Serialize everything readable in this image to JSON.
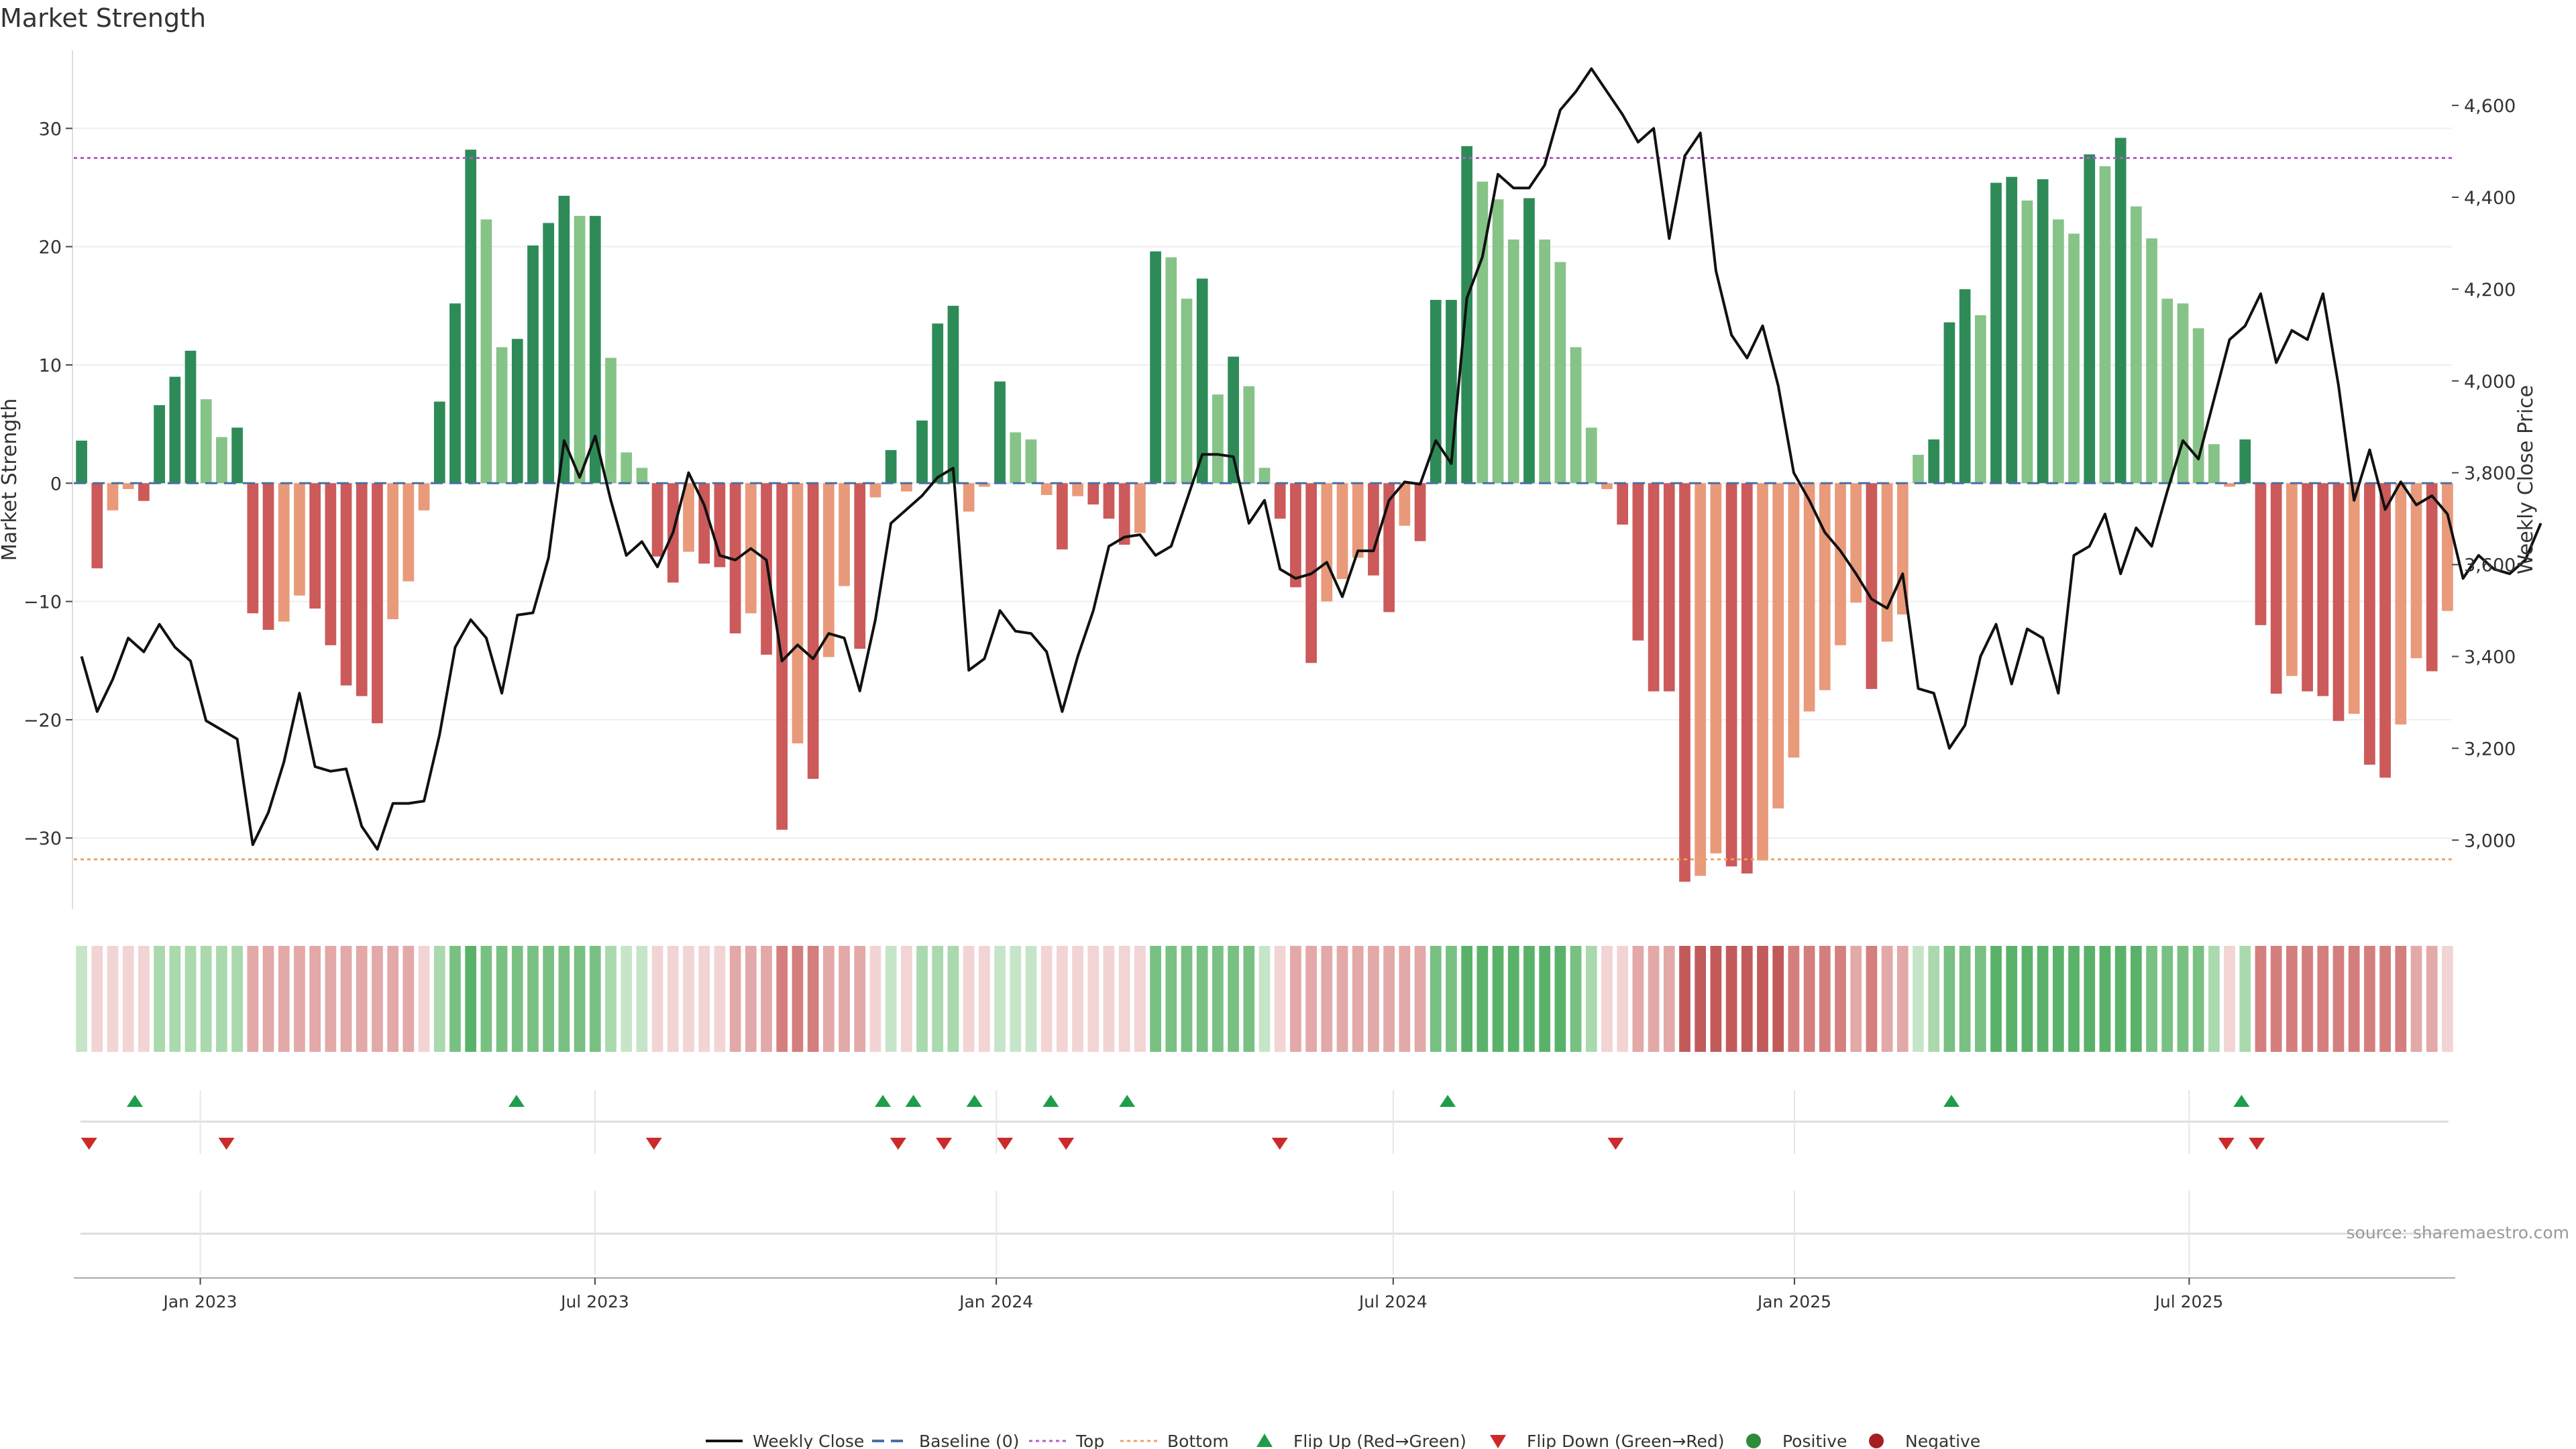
{
  "title": "Market Strength",
  "source": "source: sharemaestro.com",
  "chart_data": {
    "type": "bar",
    "title": "Market Strength",
    "ylabel": "Market Strength",
    "y2label": "Weekly Close Price",
    "ylim": [
      -36,
      36.6
    ],
    "y2lim": [
      2850,
      4720
    ],
    "yticks": [
      30,
      20,
      10,
      0,
      -10,
      -20,
      -30
    ],
    "ytick_labels": [
      "30",
      "20",
      "10",
      "0",
      "−10",
      "−20",
      "−30"
    ],
    "y2ticks": [
      4600,
      4400,
      4200,
      4000,
      3800,
      3600,
      3400,
      3200,
      3000
    ],
    "y2tick_labels": [
      "4,600",
      "4,400",
      "4,200",
      "4,000",
      "3,800",
      "3,600",
      "3,400",
      "3,200",
      "3,000"
    ],
    "x_start": "2022-11-04",
    "x_end": "2025-10-31",
    "xticks": [
      "2023-01-01",
      "2023-07-01",
      "2024-01-01",
      "2024-07-01",
      "2025-01-01",
      "2025-07-01"
    ],
    "xtick_labels": [
      "Jan 2023",
      "Jul 2023",
      "Jan 2024",
      "Jul 2024",
      "Jan 2025",
      "Jul 2025"
    ],
    "top_line": 27.5,
    "bottom_line": -31.8,
    "baseline": 0,
    "strength": [
      3.6,
      -7.2,
      -2.3,
      -0.5,
      -1.5,
      6.6,
      9.0,
      11.2,
      7.1,
      3.9,
      4.7,
      -11.0,
      -12.4,
      -11.7,
      -9.5,
      -10.6,
      -13.7,
      -17.1,
      -18.0,
      -20.3,
      -11.5,
      -8.3,
      -2.3,
      6.9,
      15.2,
      28.2,
      22.3,
      11.5,
      12.2,
      20.1,
      22.0,
      24.3,
      22.6,
      22.6,
      10.6,
      2.6,
      1.3,
      -6.2,
      -8.4,
      -5.8,
      -6.8,
      -7.1,
      -12.7,
      -11.0,
      -14.5,
      -29.3,
      -22.0,
      -25.0,
      -14.7,
      -8.7,
      -14.0,
      -1.2,
      2.8,
      -0.7,
      5.3,
      13.5,
      15.0,
      -2.4,
      -0.3,
      8.6,
      4.3,
      3.7,
      -1.0,
      -5.6,
      -1.1,
      -1.8,
      -3.0,
      -5.2,
      -4.2,
      19.6,
      19.1,
      15.6,
      17.3,
      7.5,
      10.7,
      8.2,
      1.3,
      -3.0,
      -8.8,
      -15.2,
      -10.0,
      -8.1,
      -6.3,
      -7.8,
      -10.9,
      -3.6,
      -4.9,
      15.5,
      15.5,
      28.5,
      25.5,
      24.0,
      20.6,
      24.1,
      20.6,
      18.7,
      11.5,
      4.7,
      -0.5,
      -3.5,
      -13.3,
      -17.6,
      -17.6,
      -33.7,
      -33.2,
      -31.3,
      -32.4,
      -33.0,
      -31.9,
      -27.5,
      -23.2,
      -19.3,
      -17.5,
      -13.7,
      -10.1,
      -17.4,
      -13.4,
      -11.1,
      2.4,
      3.7,
      13.6,
      16.4,
      14.2,
      25.4,
      25.9,
      23.9,
      25.7,
      22.3,
      21.1,
      27.8,
      26.8,
      29.2,
      23.4,
      20.7,
      15.6,
      15.2,
      13.1,
      3.3,
      -0.3,
      3.7,
      -12.0,
      -17.8,
      -16.3,
      -17.6,
      -18.0,
      -20.1,
      -19.5,
      -23.8,
      -24.9,
      -20.4,
      -14.8,
      -15.9,
      -10.8
    ],
    "weekly_close": [
      3400,
      3280,
      3350,
      3440,
      3410,
      3470,
      3420,
      3390,
      3260,
      3240,
      3220,
      2990,
      3060,
      3170,
      3320,
      3160,
      3150,
      3155,
      3030,
      2980,
      3080,
      3080,
      3085,
      3230,
      3420,
      3480,
      3440,
      3320,
      3490,
      3495,
      3615,
      3870,
      3790,
      3880,
      3740,
      3620,
      3650,
      3595,
      3670,
      3800,
      3730,
      3620,
      3610,
      3635,
      3610,
      3390,
      3425,
      3395,
      3450,
      3440,
      3325,
      3480,
      3690,
      3720,
      3750,
      3790,
      3810,
      3370,
      3395,
      3500,
      3455,
      3450,
      3410,
      3280,
      3400,
      3500,
      3640,
      3660,
      3665,
      3620,
      3640,
      3740,
      3840,
      3840,
      3835,
      3690,
      3740,
      3590,
      3570,
      3580,
      3605,
      3530,
      3630,
      3630,
      3740,
      3780,
      3775,
      3870,
      3820,
      4180,
      4270,
      4450,
      4420,
      4420,
      4470,
      4590,
      4630,
      4680,
      4630,
      4580,
      4520,
      4550,
      4310,
      4490,
      4540,
      4240,
      4100,
      4050,
      4120,
      3990,
      3800,
      3740,
      3670,
      3630,
      3580,
      3525,
      3505,
      3580,
      3330,
      3320,
      3200,
      3250,
      3400,
      3470,
      3340,
      3460,
      3440,
      3320,
      3620,
      3640,
      3710,
      3580,
      3680,
      3640,
      3760,
      3870,
      3830,
      3960,
      4090,
      4120,
      4190,
      4040,
      4110,
      4090,
      4190,
      3990,
      3740,
      3850,
      3720,
      3780,
      3730,
      3750,
      3710,
      3570,
      3620,
      3590,
      3580,
      3610,
      3690
    ],
    "heat_levels": [
      1,
      -1,
      -1,
      -1,
      -1,
      2,
      2,
      2,
      2,
      2,
      2,
      -2,
      -2,
      -2,
      -2,
      -2,
      -2,
      -2,
      -2,
      -2,
      -2,
      -2,
      -1,
      2,
      3,
      4,
      3,
      3,
      3,
      3,
      3,
      3,
      3,
      3,
      2,
      1,
      1,
      -1,
      -1,
      -1,
      -1,
      -1,
      -2,
      -2,
      -2,
      -3,
      -3,
      -3,
      -2,
      -2,
      -2,
      -1,
      1,
      -1,
      2,
      2,
      2,
      -1,
      -1,
      1,
      1,
      1,
      -1,
      -1,
      -1,
      -1,
      -1,
      -1,
      -1,
      3,
      3,
      3,
      3,
      3,
      3,
      3,
      1,
      -1,
      -2,
      -2,
      -2,
      -2,
      -2,
      -2,
      -2,
      -2,
      -2,
      3,
      3,
      4,
      4,
      4,
      4,
      4,
      4,
      4,
      3,
      2,
      -1,
      -1,
      -2,
      -2,
      -2,
      -4,
      -4,
      -4,
      -4,
      -4,
      -4,
      -4,
      -3,
      -3,
      -3,
      -3,
      -2,
      -3,
      -2,
      -2,
      1,
      2,
      3,
      3,
      3,
      4,
      4,
      4,
      4,
      4,
      4,
      4,
      4,
      4,
      4,
      3,
      3,
      3,
      3,
      2,
      -1,
      2,
      -3,
      -3,
      -3,
      -3,
      -3,
      -3,
      -3,
      -3,
      -3,
      -3,
      -2,
      -2,
      -1
    ],
    "flip_up": [
      "2022-12-02",
      "2023-05-26",
      "2023-11-10",
      "2023-11-24",
      "2023-12-22",
      "2024-01-26",
      "2024-03-01",
      "2024-07-26",
      "2025-03-14",
      "2025-07-25"
    ],
    "flip_down": [
      "2022-11-11",
      "2023-01-13",
      "2023-07-28",
      "2023-11-17",
      "2023-12-08",
      "2024-01-05",
      "2024-02-02",
      "2024-05-10",
      "2024-10-11",
      "2025-07-18",
      "2025-08-01"
    ],
    "legend": [
      {
        "label": "Weekly Close",
        "kind": "line",
        "color": "#111111"
      },
      {
        "label": "Baseline (0)",
        "kind": "dash",
        "color": "#4a6fa5"
      },
      {
        "label": "Top",
        "kind": "dot",
        "color": "#b05cc8"
      },
      {
        "label": "Bottom",
        "kind": "dot",
        "color": "#e8a36a"
      },
      {
        "label": "Flip Up (Red→Green)",
        "kind": "tri-up",
        "color": "#1e9e4a"
      },
      {
        "label": "Flip Down (Green→Red)",
        "kind": "tri-down",
        "color": "#cc2a2a"
      },
      {
        "label": "Positive",
        "kind": "circle",
        "color": "#2e8b3a"
      },
      {
        "label": "Negative",
        "kind": "circle",
        "color": "#a51e24"
      }
    ],
    "colors": {
      "pos_strong": "#2e8b57",
      "pos_light": "#86c387",
      "neg_strong": "#cc5a5a",
      "neg_light": "#e99a7a",
      "price_line": "#111111",
      "baseline": "#4a6fa5",
      "top": "#b05cc8",
      "bottom": "#e8a36a"
    }
  }
}
